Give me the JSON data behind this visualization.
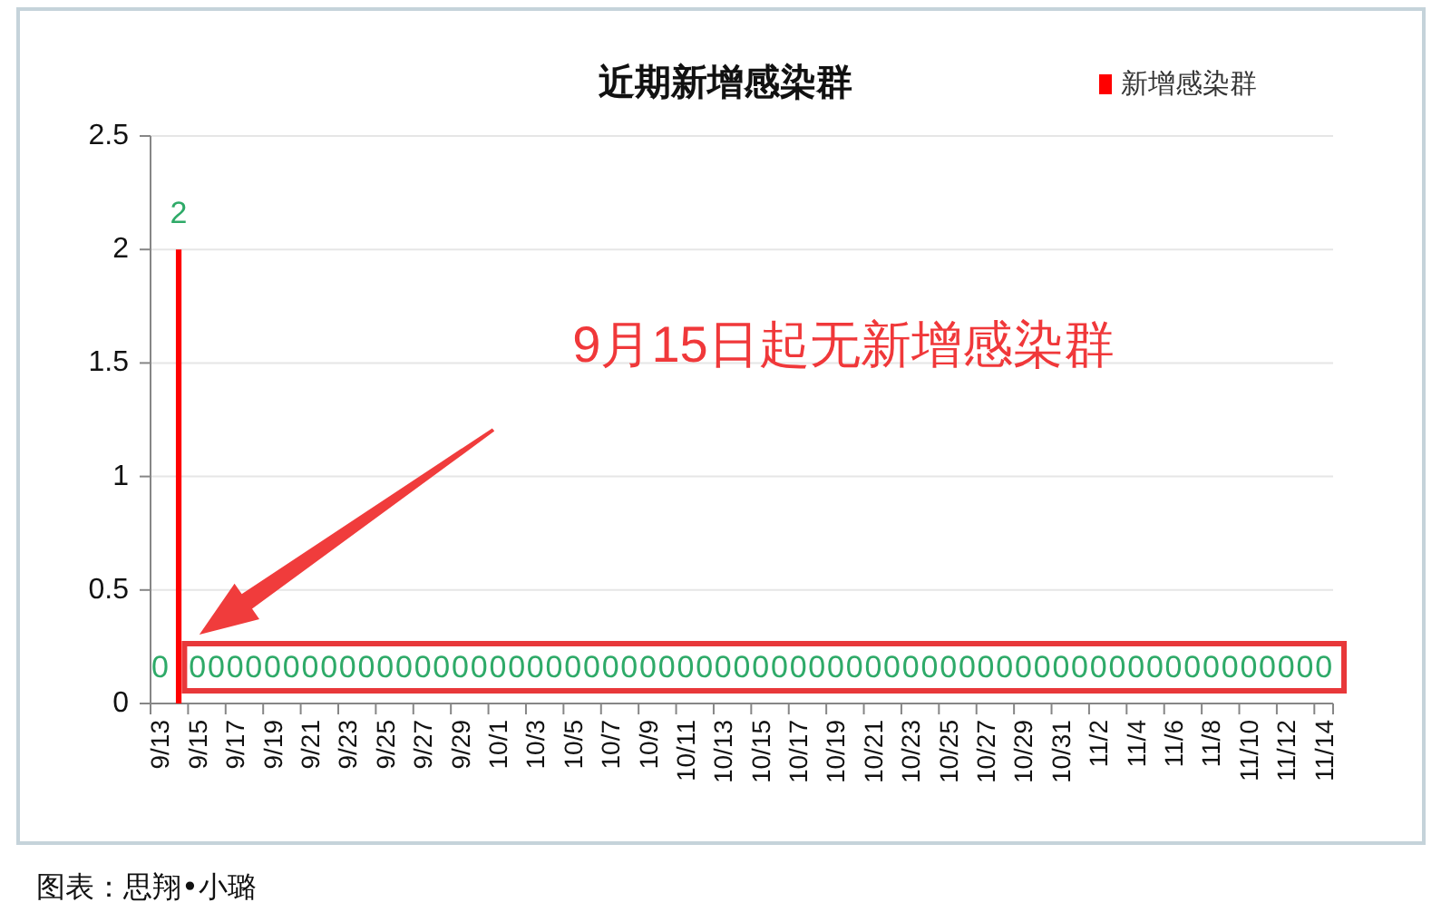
{
  "chart_data": {
    "type": "bar",
    "title": "近期新增感染群",
    "categories": [
      "9/13",
      null,
      "9/15",
      null,
      "9/17",
      null,
      "9/19",
      null,
      "9/21",
      null,
      "9/23",
      null,
      "9/25",
      null,
      "9/27",
      null,
      "9/29",
      null,
      "10/1",
      null,
      "10/3",
      null,
      "10/5",
      null,
      "10/7",
      null,
      "10/9",
      null,
      "10/11",
      null,
      "10/13",
      null,
      "10/15",
      null,
      "10/17",
      null,
      "10/19",
      null,
      "10/21",
      null,
      "10/23",
      null,
      "10/25",
      null,
      "10/27",
      null,
      "10/29",
      null,
      "10/31",
      null,
      "11/2",
      null,
      "11/4",
      null,
      "11/6",
      null,
      "11/8",
      null,
      "11/10",
      null,
      "11/12",
      null,
      "11/14"
    ],
    "series": [
      {
        "name": "新增感染群",
        "color": "#ff0000",
        "values": [
          0,
          2,
          0,
          0,
          0,
          0,
          0,
          0,
          0,
          0,
          0,
          0,
          0,
          0,
          0,
          0,
          0,
          0,
          0,
          0,
          0,
          0,
          0,
          0,
          0,
          0,
          0,
          0,
          0,
          0,
          0,
          0,
          0,
          0,
          0,
          0,
          0,
          0,
          0,
          0,
          0,
          0,
          0,
          0,
          0,
          0,
          0,
          0,
          0,
          0,
          0,
          0,
          0,
          0,
          0,
          0,
          0,
          0,
          0,
          0,
          0,
          0,
          0
        ]
      }
    ],
    "ylim": [
      0,
      2.5
    ],
    "yticks": [
      0,
      0.5,
      1,
      1.5,
      2,
      2.5
    ],
    "grid": "y",
    "legend": "top right",
    "data_labels": true,
    "annotations": [
      "9月15日起无新增感染群",
      "图表：思翔•小璐"
    ]
  }
}
